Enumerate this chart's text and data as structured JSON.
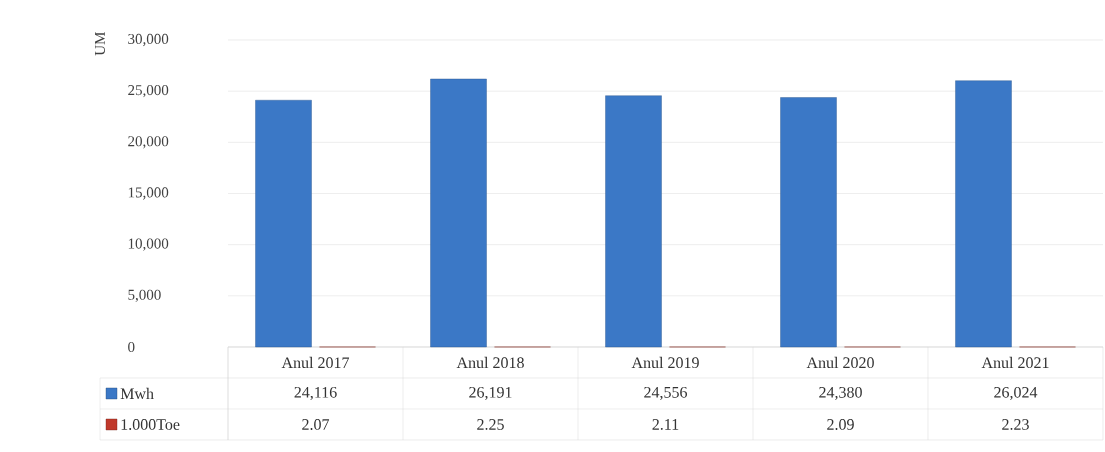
{
  "chart_data": {
    "type": "bar",
    "ylabel": "UM",
    "categories": [
      "Anul 2017",
      "Anul 2018",
      "Anul 2019",
      "Anul 2020",
      "Anul 2021"
    ],
    "series": [
      {
        "name": "Mwh",
        "color": "#3b78c6",
        "values": [
          24116,
          26191,
          24556,
          24380,
          26024
        ],
        "value_labels": [
          "24,116",
          "26,191",
          "24,556",
          "24,380",
          "26,024"
        ]
      },
      {
        "name": "1.000Toe",
        "color": "#c0392b",
        "values": [
          2.07,
          2.25,
          2.11,
          2.09,
          2.23
        ],
        "value_labels": [
          "2.07",
          "2.25",
          "2.11",
          "2.09",
          "2.23"
        ]
      }
    ],
    "ylim": [
      0,
      30000
    ],
    "yticks": [
      {
        "value": 0,
        "label": "0"
      },
      {
        "value": 5000,
        "label": "5,000"
      },
      {
        "value": 10000,
        "label": "10,000"
      },
      {
        "value": 15000,
        "label": "15,000"
      },
      {
        "value": 20000,
        "label": "20,000"
      },
      {
        "value": 25000,
        "label": "25,000"
      },
      {
        "value": 30000,
        "label": "30,000"
      }
    ],
    "grid": "y",
    "legend": "bottom"
  }
}
